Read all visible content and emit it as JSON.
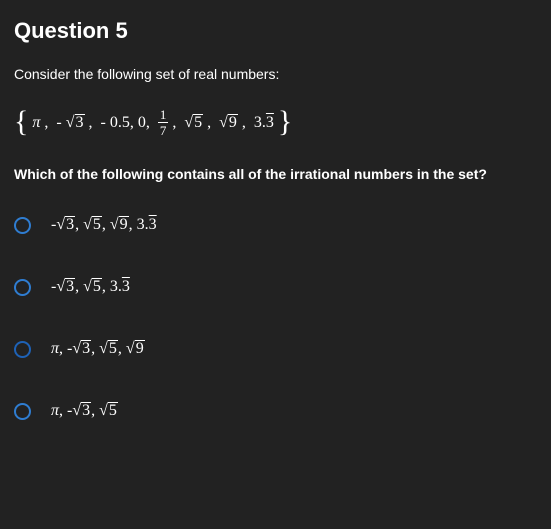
{
  "title": "Question 5",
  "prompt": "Consider the following set of real numbers:",
  "set_items": [
    "π",
    "-√3",
    "-0.5",
    "0",
    "1/7",
    "√5",
    "√9",
    "3.3̄"
  ],
  "subq": "Which of the following contains all of the irrational numbers in the set?",
  "options": [
    {
      "text": "-√3, √5, √9, 3.3̄",
      "selected": false
    },
    {
      "text": "-√3, √5, 3.3̄",
      "selected": false
    },
    {
      "text": "π, -√3, √5, √9",
      "selected": false
    },
    {
      "text": "π, -√3, √5",
      "selected": false
    }
  ],
  "colors": {
    "bg": "#222222",
    "text": "#ffffff",
    "radio_border": "#2f7dd1"
  }
}
